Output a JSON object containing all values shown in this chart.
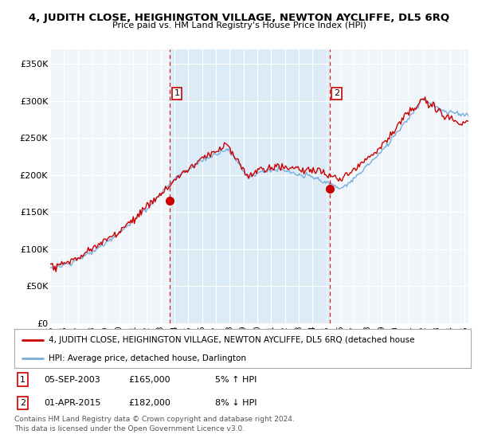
{
  "title": "4, JUDITH CLOSE, HEIGHINGTON VILLAGE, NEWTON AYCLIFFE, DL5 6RQ",
  "subtitle": "Price paid vs. HM Land Registry's House Price Index (HPI)",
  "ylabel_ticks": [
    "£0",
    "£50K",
    "£100K",
    "£150K",
    "£200K",
    "£250K",
    "£300K",
    "£350K"
  ],
  "ytick_values": [
    0,
    50000,
    100000,
    150000,
    200000,
    250000,
    300000,
    350000
  ],
  "ylim": [
    0,
    370000
  ],
  "sale1_x": 2003.67,
  "sale1_y": 165000,
  "sale2_x": 2015.25,
  "sale2_y": 182000,
  "sale1_date_str": "05-SEP-2003",
  "sale2_date_str": "01-APR-2015",
  "sale1_price_str": "£165,000",
  "sale2_price_str": "£182,000",
  "sale1_hpi": "5% ↑ HPI",
  "sale2_hpi": "8% ↓ HPI",
  "legend_line1": "4, JUDITH CLOSE, HEIGHINGTON VILLAGE, NEWTON AYCLIFFE, DL5 6RQ (detached house",
  "legend_line2": "HPI: Average price, detached house, Darlington",
  "footer": "Contains HM Land Registry data © Crown copyright and database right 2024.\nThis data is licensed under the Open Government Licence v3.0.",
  "sale_color": "#cc0000",
  "hpi_color": "#7aadda",
  "vline_color": "#cc0000",
  "shade_color": "#d6e8f5",
  "background_chart": "#f0f5fa",
  "background_fig": "#ffffff",
  "xlim_left": 1995,
  "xlim_right": 2025.3
}
